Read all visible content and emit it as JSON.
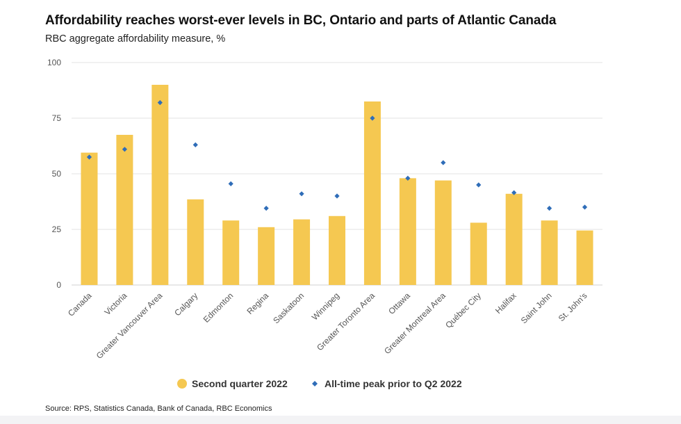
{
  "title": "Affordability reaches worst-ever levels in BC, Ontario and parts of Atlantic Canada",
  "subtitle": "RBC aggregate affordability measure, %",
  "source": "Source: RPS, Statistics Canada, Bank of Canada, RBC Economics",
  "colors": {
    "bar": "#F5C851",
    "marker": "#2F6DB8",
    "grid": "#e3e3e3",
    "axis": "#d0d0d0",
    "text": "#555555"
  },
  "chart_data": {
    "type": "bar",
    "title": "Affordability reaches worst-ever levels in BC, Ontario and parts of Atlantic Canada",
    "subtitle": "RBC aggregate affordability measure, %",
    "xlabel": "",
    "ylabel": "",
    "ylim": [
      0,
      100
    ],
    "yticks": [
      0,
      25,
      50,
      75,
      100
    ],
    "grid": true,
    "legend_position": "bottom",
    "categories": [
      "Canada",
      "Victoria",
      "Greater Vancouver Area",
      "Calgary",
      "Edmonton",
      "Regina",
      "Saskatoon",
      "Winnipeg",
      "Greater Toronto Area",
      "Ottawa",
      "Greater Montreal Area",
      "Québec City",
      "Halifax",
      "Saint John",
      "St. John's"
    ],
    "series": [
      {
        "name": "Second quarter 2022",
        "kind": "bar",
        "values": [
          59.5,
          67.5,
          90,
          38.5,
          29,
          26,
          29.5,
          31,
          82.5,
          48,
          47,
          28,
          41,
          29,
          24.5
        ]
      },
      {
        "name": "All-time peak prior to Q2 2022",
        "kind": "marker",
        "values": [
          57.5,
          61,
          82,
          63,
          45.5,
          34.5,
          41,
          40,
          75,
          48,
          55,
          45,
          41.5,
          34.5,
          35
        ]
      }
    ]
  }
}
